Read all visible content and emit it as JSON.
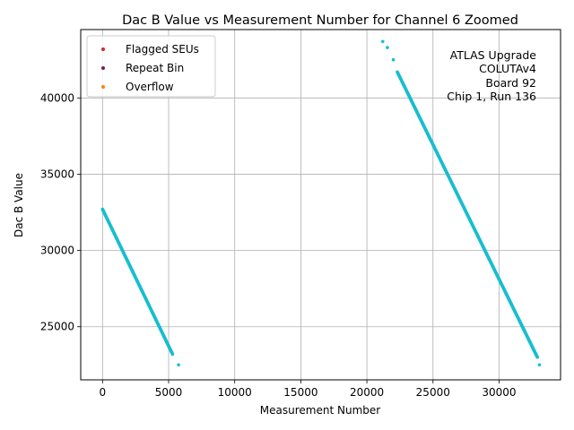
{
  "chart_data": {
    "type": "scatter",
    "title": "Dac B Value vs Measurement Number for Channel 6 Zoomed",
    "xlabel": "Measurement Number",
    "ylabel": "Dac B Value",
    "xlim": [
      -1650,
      34650
    ],
    "ylim": [
      21520,
      44480
    ],
    "xticks": [
      0,
      5000,
      10000,
      15000,
      20000,
      25000,
      30000
    ],
    "yticks": [
      25000,
      30000,
      35000,
      40000
    ],
    "grid": true,
    "legend_position": "top-left",
    "legend": [
      {
        "label": "Flagged SEUs",
        "color": "#d62728"
      },
      {
        "label": "Repeat Bin",
        "color": "#7a1a5a"
      },
      {
        "label": "Overflow",
        "color": "#ff7f0e"
      }
    ],
    "annotation": [
      "ATLAS Upgrade",
      "COLUTAv4",
      "Board 92",
      "Chip 1, Run 136"
    ],
    "series": [
      {
        "color": "#17becf",
        "segments": [
          {
            "x_start": 0,
            "x_end": 5300,
            "y_start": 32700,
            "y_end": 23200
          },
          {
            "x_start": 22300,
            "x_end": 32900,
            "y_start": 41700,
            "y_end": 23000
          }
        ],
        "points": [
          [
            5750,
            22500
          ],
          [
            21200,
            43700
          ],
          [
            21550,
            43300
          ],
          [
            22000,
            42500
          ],
          [
            33050,
            22500
          ]
        ]
      }
    ]
  }
}
